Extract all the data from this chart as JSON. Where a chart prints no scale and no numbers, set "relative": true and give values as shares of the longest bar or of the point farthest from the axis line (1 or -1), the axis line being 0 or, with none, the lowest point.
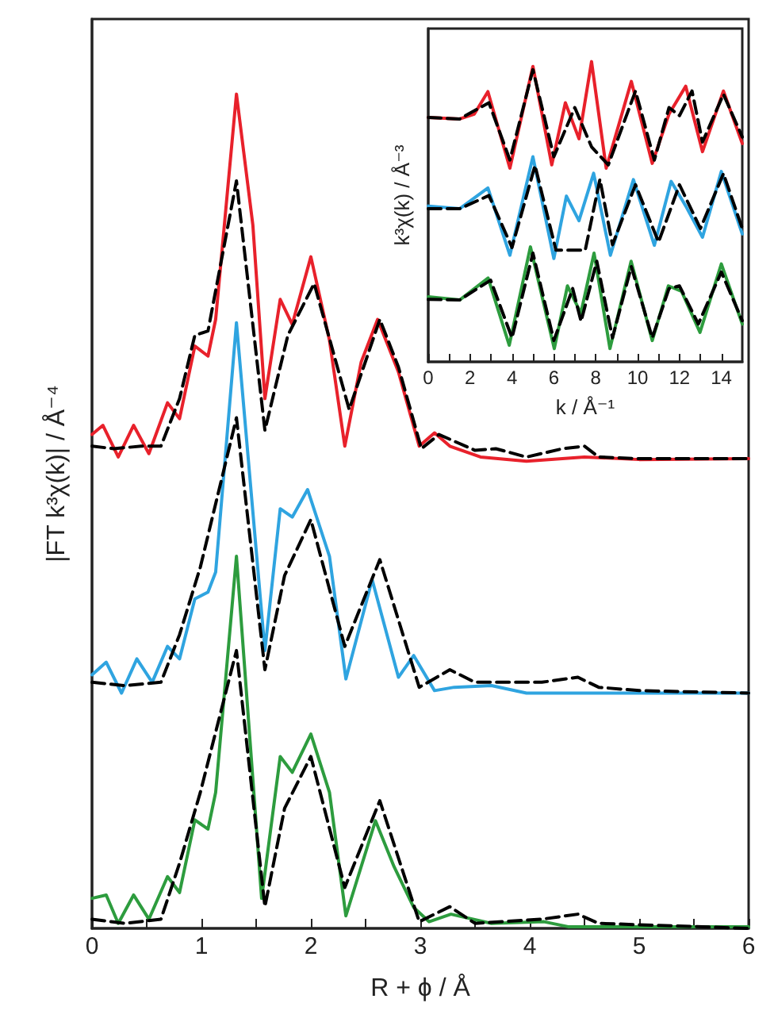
{
  "chart_data": [
    {
      "type": "line",
      "xlabel": "R + ϕ / Å",
      "ylabel": "|FT k³χ(k)| / Å⁻⁴",
      "relative": true,
      "tick_labels": "x",
      "marker": "none",
      "xlim": [
        0,
        6
      ],
      "xticks": [
        0,
        {
          "value": 0.5,
          "label": null
        },
        1,
        {
          "value": 1.5,
          "label": null
        },
        2,
        {
          "value": 2.5,
          "label": null
        },
        3,
        {
          "value": 3.5,
          "label": null
        },
        4,
        {
          "value": 4.5,
          "label": null
        },
        5,
        {
          "value": 5.5,
          "label": null
        },
        6
      ],
      "series": [
        {
          "color": "#000000",
          "line_style": "dashed",
          "x": [
            0,
            0.2,
            0.45,
            0.63,
            0.8,
            0.94,
            1.06,
            1.32,
            1.58,
            1.79,
            2.03,
            2.35,
            2.63,
            2.8,
            3.01,
            3.17,
            3.5,
            3.69,
            3.97,
            4.3,
            4.5,
            4.63,
            5,
            6
          ],
          "values": [
            0.578,
            0.575,
            0.578,
            0.578,
            0.635,
            0.711,
            0.716,
            0.896,
            0.597,
            0.711,
            0.773,
            0.622,
            0.73,
            0.673,
            0.575,
            0.592,
            0.573,
            0.575,
            0.565,
            0.575,
            0.578,
            0.565,
            0.563,
            0.563
          ]
        },
        {
          "color": "#e8212b",
          "line_style": "solid",
          "x": [
            0,
            0.1,
            0.24,
            0.38,
            0.52,
            0.69,
            0.8,
            0.94,
            1.06,
            1.13,
            1.32,
            1.47,
            1.58,
            1.72,
            1.83,
            2.0,
            2.17,
            2.31,
            2.46,
            2.61,
            2.8,
            2.99,
            3.13,
            3.27,
            3.55,
            3.97,
            4.5,
            5,
            6
          ],
          "values": [
            0.592,
            0.603,
            0.565,
            0.603,
            0.569,
            0.63,
            0.611,
            0.698,
            0.686,
            0.73,
            1,
            0.843,
            0.635,
            0.754,
            0.724,
            0.805,
            0.705,
            0.578,
            0.679,
            0.73,
            0.667,
            0.578,
            0.594,
            0.578,
            0.565,
            0.56,
            0.565,
            0.562,
            0.563
          ]
        },
        {
          "color": "#000000",
          "line_style": "dashed",
          "x": [
            0,
            0.3,
            0.63,
            0.8,
            0.99,
            1.32,
            1.58,
            1.76,
            2.0,
            2.31,
            2.63,
            2.99,
            3.27,
            3.5,
            4.11,
            4.44,
            4.63,
            5,
            6
          ],
          "values": [
            0.295,
            0.291,
            0.295,
            0.352,
            0.433,
            0.612,
            0.31,
            0.423,
            0.49,
            0.338,
            0.442,
            0.289,
            0.31,
            0.295,
            0.295,
            0.301,
            0.289,
            0.285,
            0.282
          ]
        },
        {
          "color": "#2fa4e0",
          "line_style": "solid",
          "x": [
            0,
            0.13,
            0.27,
            0.41,
            0.55,
            0.69,
            0.8,
            0.94,
            1.06,
            1.13,
            1.32,
            1.58,
            1.72,
            1.83,
            1.97,
            2.17,
            2.32,
            2.56,
            2.8,
            2.94,
            3.13,
            3.31,
            3.65,
            3.97,
            6
          ],
          "values": [
            0.304,
            0.319,
            0.282,
            0.323,
            0.295,
            0.338,
            0.323,
            0.395,
            0.403,
            0.427,
            0.726,
            0.333,
            0.503,
            0.493,
            0.526,
            0.446,
            0.299,
            0.418,
            0.301,
            0.327,
            0.285,
            0.289,
            0.291,
            0.282,
            0.282
          ]
        },
        {
          "color": "#000000",
          "line_style": "dashed",
          "x": [
            0,
            0.3,
            0.63,
            0.8,
            0.99,
            1.32,
            1.58,
            1.76,
            2.0,
            2.31,
            2.63,
            2.99,
            3.27,
            3.5,
            4.11,
            4.44,
            4.63,
            6
          ],
          "values": [
            0.011,
            0.006,
            0.011,
            0.078,
            0.163,
            0.333,
            0.026,
            0.144,
            0.206,
            0.049,
            0.153,
            0.008,
            0.026,
            0.006,
            0.011,
            0.017,
            0.006,
            0
          ]
        },
        {
          "color": "#2d9c3e",
          "line_style": "solid",
          "x": [
            0,
            0.13,
            0.24,
            0.38,
            0.52,
            0.69,
            0.8,
            0.94,
            1.06,
            1.13,
            1.32,
            1.55,
            1.72,
            1.83,
            2.0,
            2.17,
            2.32,
            2.59,
            2.76,
            2.94,
            3.08,
            3.28,
            3.65,
            4.13,
            4.35,
            6
          ],
          "values": [
            0.036,
            0.04,
            0.006,
            0.04,
            0.011,
            0.062,
            0.043,
            0.13,
            0.119,
            0.163,
            0.446,
            0.036,
            0.206,
            0.187,
            0.233,
            0.163,
            0.015,
            0.129,
            0.074,
            0.025,
            0.008,
            0.017,
            0.006,
            0.008,
            0.002,
            0.002
          ]
        }
      ]
    },
    {
      "type": "line",
      "xlabel": "k / Å⁻¹",
      "ylabel": "k³χ(k) / Å⁻³",
      "relative": true,
      "tick_labels": "x",
      "marker": "none",
      "xlim": [
        0,
        15
      ],
      "xticks": [
        0,
        {
          "value": 1,
          "label": null
        },
        2,
        {
          "value": 3,
          "label": null
        },
        4,
        {
          "value": 5,
          "label": null
        },
        6,
        {
          "value": 7,
          "label": null
        },
        8,
        {
          "value": 9,
          "label": null
        },
        10,
        {
          "value": 11,
          "label": null
        },
        12,
        {
          "value": 13,
          "label": null
        },
        14
      ],
      "series": [
        {
          "color": "#e8212b",
          "line_style": "solid",
          "x": [
            0,
            1.5,
            2.2,
            2.85,
            3.9,
            5.0,
            5.9,
            6.55,
            7.2,
            7.8,
            8.5,
            9.7,
            10.7,
            11.5,
            12.3,
            13.1,
            14.1,
            15
          ],
          "values": [
            0.814,
            0.809,
            0.825,
            0.9,
            0.645,
            0.984,
            0.656,
            0.863,
            0.743,
            1,
            0.645,
            0.934,
            0.661,
            0.825,
            0.918,
            0.7,
            0.902,
            0.727
          ]
        },
        {
          "color": "#000000",
          "line_style": "dashed",
          "x": [
            0,
            1.5,
            2.9,
            3.9,
            5.0,
            6.0,
            7.0,
            7.8,
            8.6,
            9.9,
            10.8,
            11.5,
            12.0,
            12.6,
            13.1,
            14.1,
            15
          ],
          "values": [
            0.814,
            0.809,
            0.863,
            0.672,
            0.973,
            0.683,
            0.847,
            0.716,
            0.656,
            0.902,
            0.672,
            0.847,
            0.82,
            0.902,
            0.732,
            0.891,
            0.749
          ]
        },
        {
          "color": "#2fa4e0",
          "line_style": "solid",
          "x": [
            0,
            1.5,
            2.85,
            3.9,
            5.0,
            6.0,
            6.6,
            7.2,
            7.9,
            8.7,
            9.8,
            10.8,
            11.6,
            12.3,
            13.1,
            14.0,
            15
          ],
          "values": [
            0.519,
            0.51,
            0.579,
            0.355,
            0.683,
            0.344,
            0.552,
            0.47,
            0.628,
            0.355,
            0.607,
            0.388,
            0.601,
            0.519,
            0.415,
            0.634,
            0.426
          ]
        },
        {
          "color": "#000000",
          "line_style": "dashed",
          "x": [
            0,
            1.5,
            2.9,
            4.0,
            5.1,
            6.1,
            7.5,
            8.2,
            8.8,
            9.9,
            11.0,
            12.0,
            13.0,
            14.1,
            15
          ],
          "values": [
            0.51,
            0.51,
            0.554,
            0.381,
            0.654,
            0.372,
            0.372,
            0.608,
            0.39,
            0.59,
            0.399,
            0.59,
            0.444,
            0.627,
            0.444
          ]
        },
        {
          "color": "#2d9c3e",
          "line_style": "solid",
          "x": [
            0,
            1.5,
            2.86,
            3.87,
            4.88,
            6.02,
            6.65,
            7.29,
            7.92,
            8.68,
            9.69,
            10.7,
            11.47,
            12.1,
            12.98,
            14.0,
            15
          ],
          "values": [
            0.217,
            0.206,
            0.279,
            0.055,
            0.383,
            0.044,
            0.253,
            0.162,
            0.362,
            0.044,
            0.335,
            0.071,
            0.253,
            0.235,
            0.098,
            0.326,
            0.126
          ]
        },
        {
          "color": "#000000",
          "line_style": "dashed",
          "x": [
            0,
            1.5,
            2.98,
            4.0,
            5.0,
            6.0,
            6.9,
            7.3,
            8.05,
            8.8,
            9.7,
            10.7,
            11.5,
            12.0,
            12.9,
            14.0,
            15
          ],
          "values": [
            0.208,
            0.206,
            0.272,
            0.08,
            0.362,
            0.071,
            0.244,
            0.135,
            0.335,
            0.08,
            0.317,
            0.08,
            0.244,
            0.253,
            0.126,
            0.299,
            0.137
          ]
        }
      ]
    }
  ]
}
